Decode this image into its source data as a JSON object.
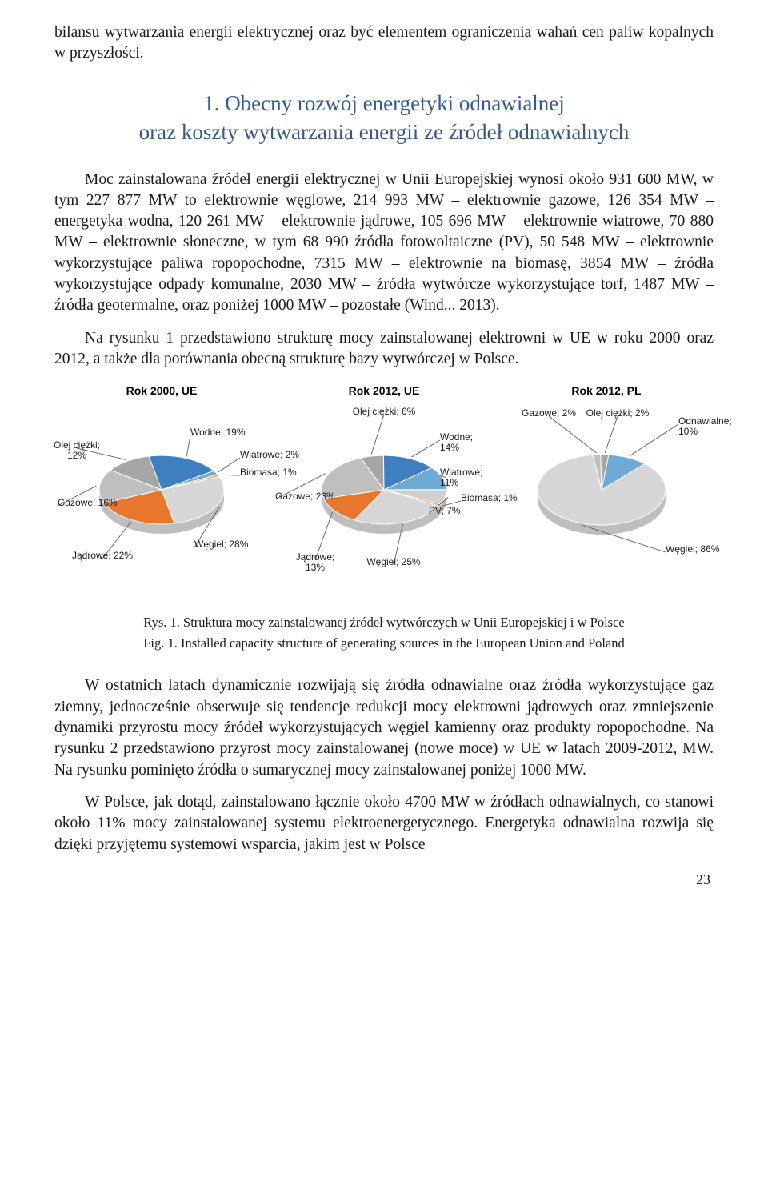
{
  "intro_text": "bilansu wytwarzania energii elektrycznej oraz być elementem ograniczenia wahań cen paliw kopalnych w przyszłości.",
  "section_heading_line1": "1. Obecny rozwój energetyki odnawialnej",
  "section_heading_line2": "oraz koszty wytwarzania energii ze źródeł odnawialnych",
  "para1": "Moc zainstalowana źródeł energii elektrycznej w Unii Europejskiej wynosi około 931 600 MW, w tym 227 877 MW to elektrownie węglowe, 214 993 MW – elektrownie gazowe, 126 354 MW – energetyka wodna, 120 261 MW – elektrownie jądrowe, 105 696 MW – elektrownie wiatrowe, 70 880 MW – elektrownie słoneczne, w tym 68 990 źródła fotowoltaiczne (PV), 50 548 MW – elektrownie wykorzystujące paliwa ropopochodne, 7315 MW – elektrownie na biomasę, 3854 MW – źródła wykorzystujące odpady komunalne, 2030 MW – źródła wytwórcze wykorzystujące torf, 1487 MW – źródła geotermalne, oraz poniżej 1000 MW – pozostałe (Wind... 2013).",
  "para2": "Na rysunku 1 przedstawiono strukturę mocy zainstalowanej elektrowni w UE w roku 2000 oraz 2012, a także dla porównania obecną strukturę bazy wytwórczej w Polsce.",
  "caption_pl": "Rys. 1. Struktura mocy zainstalowanej źródeł wytwórczych w Unii Europejskiej i w Polsce",
  "caption_en": "Fig. 1. Installed capacity structure of generating sources in the European Union and Poland",
  "para3": "W ostatnich latach dynamicznie rozwijają się źródła odnawialne oraz źródła wykorzystujące gaz ziemny, jednocześnie obserwuje się tendencje redukcji mocy elektrowni jądrowych oraz zmniejszenie dynamiki przyrostu mocy źródeł wykorzystujących węgiel kamienny oraz produkty ropopochodne. Na rysunku 2 przedstawiono przyrost mocy zainstalowanej (nowe moce) w UE w latach 2009-2012, MW. Na rysunku pominięto źródła o sumarycznej mocy zainstalowanej poniżej 1000 MW.",
  "para4": "W Polsce, jak dotąd, zainstalowano łącznie około 4700 MW w źródłach odnawialnych, co stanowi około 11% mocy zainstalowanej systemu elektroenergetycznego. Energetyka odnawialna rozwija się dzięki przyjętemu systemowi wsparcia, jakim jest w Polsce",
  "page_number": "23",
  "charts": {
    "colors": {
      "olej": "#a6a6a6",
      "wodne": "#3e7fbf",
      "gazowe": "#bfbfbf",
      "jadrowe": "#e8762d",
      "wegiel": "#d6d6d6",
      "wiatrowe": "#6fa9d6",
      "biomasa": "#f2a561",
      "odnawialne": "#6fa9d6",
      "pv": "#cfcfcf",
      "line": "#595959",
      "label": "#1a1a1a"
    },
    "chart1": {
      "title": "Rok 2000, UE",
      "slices": [
        {
          "label": "Olej ciężki;\n12%",
          "value": 12,
          "color": "olej"
        },
        {
          "label": "Wodne; 19%",
          "value": 19,
          "color": "wodne"
        },
        {
          "label": "Wiatrowe; 2%",
          "value": 2,
          "color": "wiatrowe"
        },
        {
          "label": "Biomasa; 1%",
          "value": 1,
          "color": "biomasa"
        },
        {
          "label": "Węgiel; 28%",
          "value": 28,
          "color": "wegiel"
        },
        {
          "label": "Jądrowe; 22%",
          "value": 22,
          "color": "jadrowe"
        },
        {
          "label": "Gazowe; 16%",
          "value": 16,
          "color": "gazowe"
        }
      ]
    },
    "chart2": {
      "title": "Rok 2012, UE",
      "slices": [
        {
          "label": "Olej ciężki; 6%",
          "value": 6,
          "color": "olej"
        },
        {
          "label": "Wodne;\n14%",
          "value": 14,
          "color": "wodne"
        },
        {
          "label": "Wiatrowe;\n11%",
          "value": 11,
          "color": "wiatrowe"
        },
        {
          "label": "PV; 7%",
          "value": 7,
          "color": "pv"
        },
        {
          "label": "Biomasa; 1%",
          "value": 1,
          "color": "biomasa"
        },
        {
          "label": "Węgiel; 25%",
          "value": 25,
          "color": "wegiel"
        },
        {
          "label": "Jądrowe;\n13%",
          "value": 13,
          "color": "jadrowe"
        },
        {
          "label": "Gazowe; 23%",
          "value": 23,
          "color": "gazowe"
        }
      ]
    },
    "chart3": {
      "title": "Rok 2012, PL",
      "slices": [
        {
          "label": "Gazowe; 2%",
          "value": 2,
          "color": "gazowe"
        },
        {
          "label": "Olej ciężki; 2%",
          "value": 2,
          "color": "olej"
        },
        {
          "label": "Odnawialne;\n10%",
          "value": 10,
          "color": "odnawialne"
        },
        {
          "label": "Węgiel; 86%",
          "value": 86,
          "color": "wegiel"
        }
      ]
    }
  }
}
